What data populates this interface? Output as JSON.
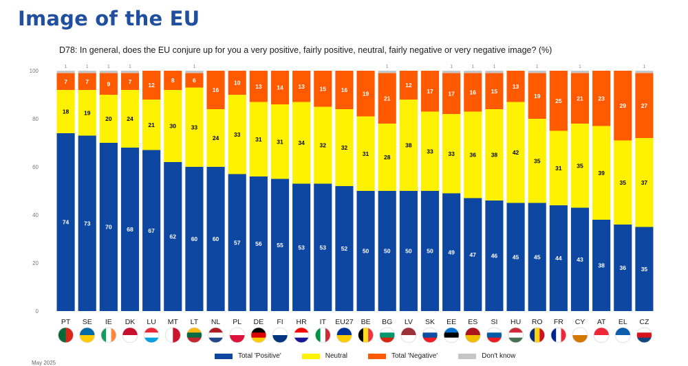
{
  "page": {
    "title": "Image of the EU",
    "question": "D78: In general, does the EU conjure up for you a very positive, fairly positive, neutral, fairly negative or very negative image? (%)",
    "footnote": "May 2025"
  },
  "chart_data": {
    "type": "bar",
    "stacked": true,
    "title": "",
    "xlabel": "",
    "ylabel": "",
    "ylim": [
      0,
      100
    ],
    "yticks": [
      0,
      20,
      40,
      60,
      80,
      100
    ],
    "grid": false,
    "legend_position": "bottom",
    "categories": [
      "PT",
      "SE",
      "IE",
      "DK",
      "LU",
      "MT",
      "LT",
      "NL",
      "PL",
      "DE",
      "FI",
      "HR",
      "IT",
      "EU27",
      "BE",
      "BG",
      "LV",
      "SK",
      "EE",
      "ES",
      "SI",
      "HU",
      "RO",
      "FR",
      "CY",
      "AT",
      "EL",
      "CZ"
    ],
    "series": [
      {
        "name": "Total 'Positive'",
        "color": "#0d47a1",
        "values": [
          74,
          73,
          70,
          68,
          67,
          62,
          60,
          60,
          57,
          56,
          55,
          53,
          53,
          52,
          50,
          50,
          50,
          50,
          49,
          47,
          46,
          45,
          45,
          44,
          43,
          38,
          36,
          35
        ]
      },
      {
        "name": "Neutral",
        "color": "#fff200",
        "values": [
          18,
          19,
          20,
          24,
          21,
          30,
          33,
          24,
          33,
          31,
          31,
          34,
          32,
          32,
          31,
          28,
          38,
          33,
          33,
          36,
          38,
          42,
          35,
          31,
          35,
          39,
          35,
          37
        ]
      },
      {
        "name": "Total 'Negative'",
        "color": "#ff5a00",
        "values": [
          7,
          7,
          9,
          7,
          12,
          8,
          6,
          16,
          10,
          13,
          14,
          13,
          15,
          16,
          19,
          21,
          12,
          17,
          17,
          16,
          15,
          13,
          19,
          25,
          21,
          23,
          29,
          27
        ]
      },
      {
        "name": "Don't know",
        "color": "#c6c6c6",
        "values": [
          1,
          1,
          1,
          1,
          0,
          0,
          1,
          0,
          0,
          0,
          0,
          0,
          0,
          0,
          0,
          1,
          0,
          0,
          1,
          1,
          1,
          0,
          1,
          0,
          1,
          0,
          0,
          1
        ]
      }
    ]
  },
  "flags": {
    "PT": [
      "#046a38",
      "#da291c"
    ],
    "SE": [
      "#006aa7",
      "#fecc00"
    ],
    "IE": [
      "#169b62",
      "#ffffff",
      "#ff883e"
    ],
    "DK": [
      "#c8102e",
      "#ffffff"
    ],
    "LU": [
      "#ed2939",
      "#ffffff",
      "#00a1de"
    ],
    "MT": [
      "#ffffff",
      "#cf142b"
    ],
    "LT": [
      "#fdb913",
      "#006a44",
      "#c1272d"
    ],
    "NL": [
      "#ae1c28",
      "#ffffff",
      "#21468b"
    ],
    "PL": [
      "#ffffff",
      "#dc143c"
    ],
    "DE": [
      "#000000",
      "#dd0000",
      "#ffce00"
    ],
    "FI": [
      "#ffffff",
      "#003580"
    ],
    "HR": [
      "#ff0000",
      "#ffffff",
      "#171796"
    ],
    "IT": [
      "#009246",
      "#ffffff",
      "#ce2b37"
    ],
    "EU27": [
      "#003399",
      "#ffcc00"
    ],
    "BE": [
      "#000000",
      "#fdda24",
      "#ef3340"
    ],
    "BG": [
      "#ffffff",
      "#00966e",
      "#d62612"
    ],
    "LV": [
      "#9e3039",
      "#ffffff"
    ],
    "SK": [
      "#ffffff",
      "#0b4ea2",
      "#ee1c25"
    ],
    "EE": [
      "#0072ce",
      "#000000",
      "#ffffff"
    ],
    "ES": [
      "#aa151b",
      "#f1bf00"
    ],
    "SI": [
      "#ffffff",
      "#005da4",
      "#ed1c24"
    ],
    "HU": [
      "#ce2939",
      "#ffffff",
      "#477050"
    ],
    "RO": [
      "#002b7f",
      "#fcd116",
      "#ce1126"
    ],
    "FR": [
      "#002395",
      "#ffffff",
      "#ed2939"
    ],
    "CY": [
      "#ffffff",
      "#d57800"
    ],
    "AT": [
      "#ed2939",
      "#ffffff"
    ],
    "EL": [
      "#0d5eaf",
      "#ffffff"
    ],
    "CZ": [
      "#ffffff",
      "#d7141a",
      "#11457e"
    ]
  }
}
